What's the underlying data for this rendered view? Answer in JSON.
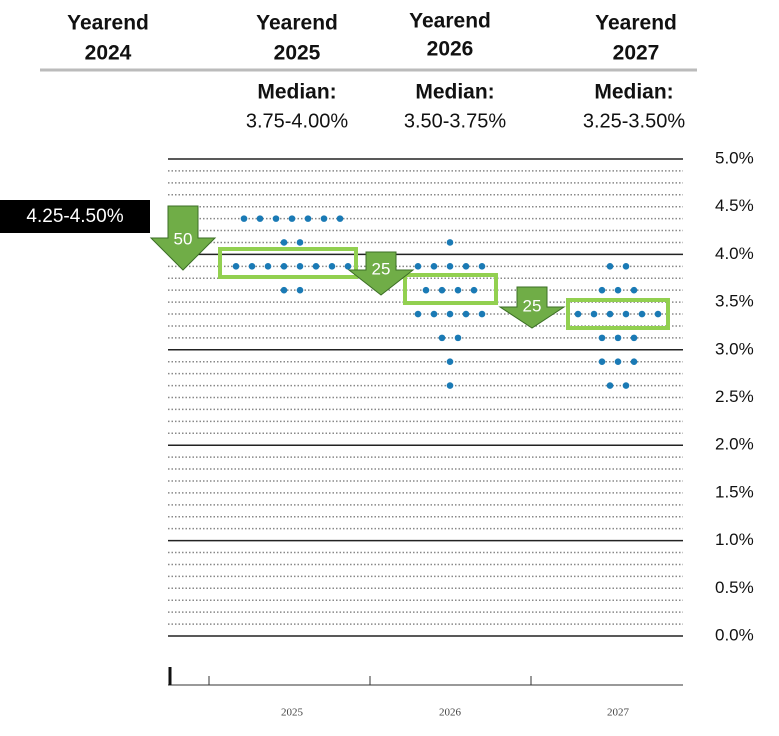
{
  "headers": [
    {
      "line1": "Yearend",
      "line2": "2024"
    },
    {
      "line1": "Yearend",
      "line2": "2025"
    },
    {
      "line1": "Yearend",
      "line2": "2026"
    },
    {
      "line1": "Yearend",
      "line2": "2027"
    }
  ],
  "medians": [
    {
      "label": "Median:",
      "range": "3.75-4.00%"
    },
    {
      "label": "Median:",
      "range": "3.50-3.75%"
    },
    {
      "label": "Median:",
      "range": "3.25-3.50%"
    }
  ],
  "current_rate": "4.25-4.50%",
  "cuts": [
    50,
    25,
    25
  ],
  "chart_data": {
    "type": "dot",
    "categories": [
      "2025",
      "2026",
      "2027"
    ],
    "values": [
      [
        4.375,
        4.375,
        4.375,
        4.375,
        4.375,
        4.375,
        4.375,
        4.125,
        4.125,
        3.875,
        3.875,
        3.875,
        3.875,
        3.875,
        3.875,
        3.875,
        3.875,
        3.625,
        3.625
      ],
      [
        4.125,
        3.875,
        3.875,
        3.875,
        3.875,
        3.875,
        3.625,
        3.625,
        3.625,
        3.625,
        3.375,
        3.375,
        3.375,
        3.375,
        3.375,
        3.125,
        3.125,
        2.875,
        2.625
      ],
      [
        3.875,
        3.875,
        3.625,
        3.625,
        3.625,
        3.375,
        3.375,
        3.375,
        3.375,
        3.375,
        3.375,
        3.125,
        3.125,
        3.125,
        2.875,
        2.875,
        2.875,
        2.625,
        2.625
      ]
    ],
    "color": "#1a7ab5",
    "ylim": [
      0,
      5
    ],
    "yticks": [
      {
        "value": 0,
        "label": "0.0%"
      },
      {
        "value": 0.5,
        "label": "0.5%"
      },
      {
        "value": 1,
        "label": "1.0%"
      },
      {
        "value": 1.5,
        "label": "1.5%"
      },
      {
        "value": 2,
        "label": "2.0%"
      },
      {
        "value": 2.5,
        "label": "2.5%"
      },
      {
        "value": 3,
        "label": "3.0%"
      },
      {
        "value": 3.5,
        "label": "3.5%"
      },
      {
        "value": 4,
        "label": "4.0%"
      },
      {
        "value": 4.5,
        "label": "4.5%"
      },
      {
        "value": 5,
        "label": "5.0%"
      }
    ],
    "minor_yticks": [
      0.125,
      0.25,
      0.375,
      0.625,
      0.75,
      0.875,
      1.125,
      1.25,
      1.375,
      1.625,
      1.75,
      1.875,
      2.125,
      2.25,
      2.375,
      2.625,
      2.75,
      2.875,
      3.125,
      3.25,
      3.375,
      3.625,
      3.75,
      3.875,
      4.125,
      4.25,
      4.375,
      4.625,
      4.75,
      4.875
    ],
    "grid": true
  }
}
